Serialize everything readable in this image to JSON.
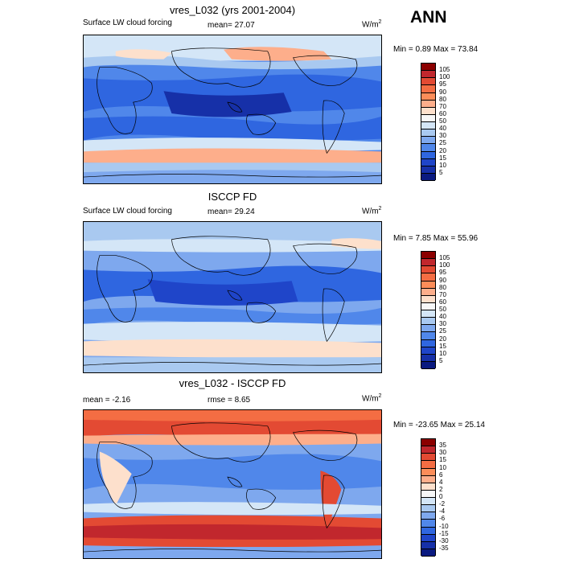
{
  "season": "ANN",
  "panels": [
    {
      "id": "model",
      "title": "vres_L032 (yrs 2001-2004)",
      "left_label": "Surface LW cloud forcing",
      "center_label": "mean=  27.07",
      "units_base": "W/m",
      "units_exp": "2",
      "minmax": "Min =   0.89 Max =  73.84",
      "colorbar": {
        "labels": [
          "105",
          "100",
          "95",
          "90",
          "80",
          "70",
          "60",
          "50",
          "40",
          "30",
          "25",
          "20",
          "15",
          "10",
          "5"
        ],
        "colors": [
          "#8b0000",
          "#c1272d",
          "#e34a33",
          "#f46d43",
          "#fc8d59",
          "#fdae8b",
          "#fde0cc",
          "#f7f7f7",
          "#d4e6f7",
          "#a9c9f0",
          "#7ea8ee",
          "#5087ea",
          "#2f66e0",
          "#1f45c9",
          "#1630a8",
          "#0a1a80"
        ]
      }
    },
    {
      "id": "obs",
      "title": "ISCCP FD",
      "left_label": "Surface LW cloud forcing",
      "center_label": "mean=  29.24",
      "units_base": "W/m",
      "units_exp": "2",
      "minmax": "Min =   7.85 Max =  55.96",
      "colorbar": {
        "labels": [
          "105",
          "100",
          "95",
          "90",
          "80",
          "70",
          "60",
          "50",
          "40",
          "30",
          "25",
          "20",
          "15",
          "10",
          "5"
        ],
        "colors": [
          "#8b0000",
          "#c1272d",
          "#e34a33",
          "#f46d43",
          "#fc8d59",
          "#fdae8b",
          "#fde0cc",
          "#f7f7f7",
          "#d4e6f7",
          "#a9c9f0",
          "#7ea8ee",
          "#5087ea",
          "#2f66e0",
          "#1f45c9",
          "#1630a8",
          "#0a1a80"
        ]
      }
    },
    {
      "id": "diff",
      "title": "vres_L032 - ISCCP FD",
      "left_label": "mean =  -2.16",
      "center_label": "rmse =   8.65",
      "units_base": "W/m",
      "units_exp": "2",
      "minmax": "Min = -23.65 Max =  25.14",
      "colorbar": {
        "labels": [
          "35",
          "30",
          "15",
          "10",
          "6",
          "4",
          "2",
          "0",
          "-2",
          "-4",
          "-6",
          "-10",
          "-15",
          "-30",
          "-35"
        ],
        "colors": [
          "#8b0000",
          "#c1272d",
          "#e34a33",
          "#f46d43",
          "#fc8d59",
          "#fdae8b",
          "#fde0cc",
          "#f7f7f7",
          "#d4e6f7",
          "#a9c9f0",
          "#7ea8ee",
          "#5087ea",
          "#2f66e0",
          "#1f45c9",
          "#1630a8",
          "#0a1a80"
        ]
      }
    }
  ]
}
